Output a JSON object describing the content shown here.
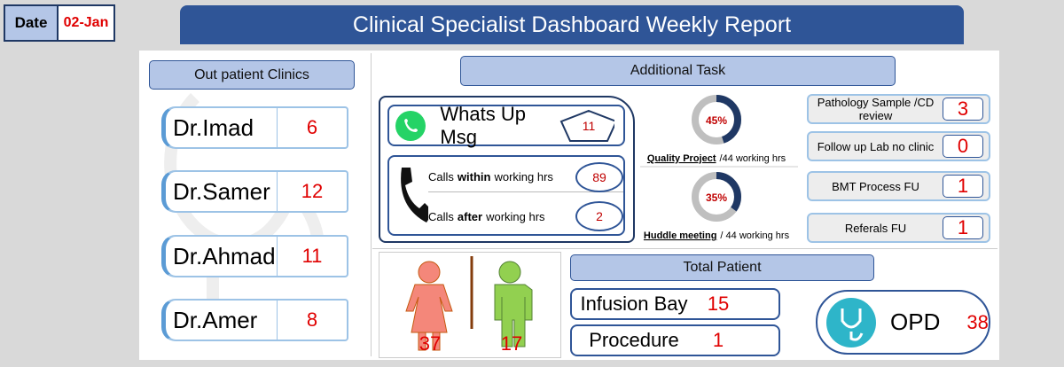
{
  "date": {
    "label": "Date",
    "value": "02-Jan"
  },
  "title": "Clinical Specialist Dashboard Weekly Report",
  "outpatient": {
    "title": "Out patient Clinics",
    "doctors": [
      {
        "name": "Dr.Imad",
        "count": 6
      },
      {
        "name": "Dr.Samer",
        "count": 12
      },
      {
        "name": "Dr.Ahmad",
        "count": 11
      },
      {
        "name": "Dr.Amer",
        "count": 8
      }
    ]
  },
  "additional_task": {
    "title": "Additional Task",
    "whatsapp": {
      "label": "Whats Up Msg",
      "count": 11
    },
    "calls": [
      {
        "prefix": "Calls",
        "emphasis": "within",
        "suffix": "working hrs",
        "count": 89
      },
      {
        "prefix": "Calls",
        "emphasis": "after",
        "suffix": "working hrs",
        "count": 2
      }
    ],
    "quality_project": {
      "value": 45,
      "label": "45%",
      "name": "Quality Project",
      "hours": "/44 working hrs"
    },
    "huddle_meeting": {
      "value": 35,
      "label": "35%",
      "name": "Huddle meeting",
      "hours": "/ 44 working hrs"
    },
    "tasks": [
      {
        "label": "Pathology Sample /CD review",
        "count": 3
      },
      {
        "label": "Follow up Lab no clinic",
        "count": 0
      },
      {
        "label": "BMT Process FU",
        "count": 1
      },
      {
        "label": "Referals FU",
        "count": 1
      }
    ]
  },
  "gender": {
    "female": 37,
    "male": 17
  },
  "total_patient": {
    "title": "Total  Patient",
    "items": [
      {
        "label": "Infusion Bay",
        "count": 15
      },
      {
        "label": "Procedure",
        "count": 1
      }
    ],
    "opd": {
      "label": "OPD",
      "count": 38
    }
  }
}
